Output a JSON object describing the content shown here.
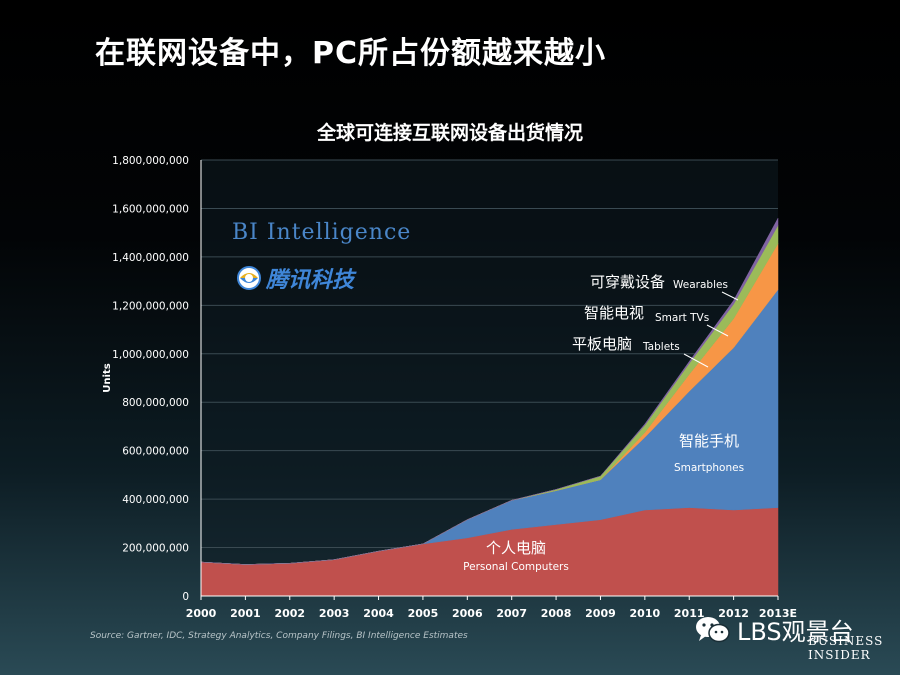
{
  "slide": {
    "title": "在联网设备中，PC所占份额越来越小",
    "source": "Source: Gartner, IDC, Strategy Analytics, Company Filings, BI Intelligence Estimates",
    "watermark_bi": "BI Intelligence",
    "watermark_tencent": "腾讯科技",
    "wechat_account": "LBS观景台",
    "corner_logo_line1": "BUSINESS",
    "corner_logo_line2": "INSIDER"
  },
  "chart_data": {
    "type": "area",
    "stacked": true,
    "title": "全球可连接互联网设备出货情况",
    "ylabel": "Units",
    "xlabel": "",
    "x": [
      "2000",
      "2001",
      "2002",
      "2003",
      "2004",
      "2005",
      "2006",
      "2007",
      "2008",
      "2009",
      "2010",
      "2011",
      "2012",
      "2013E"
    ],
    "ylim": [
      0,
      1800000000
    ],
    "yticks": [
      0,
      200000000,
      400000000,
      600000000,
      800000000,
      1000000000,
      1200000000,
      1400000000,
      1600000000,
      1800000000
    ],
    "ytick_labels": [
      "0",
      "200,000,000",
      "400,000,000",
      "600,000,000",
      "800,000,000",
      "1,000,000,000",
      "1,200,000,000",
      "1,400,000,000",
      "1,600,000,000",
      "1,800,000,000"
    ],
    "grid": true,
    "series": [
      {
        "name": "Personal Computers",
        "label_cn": "个人电脑",
        "color": "#c0504d",
        "values": [
          140000000,
          130000000,
          135000000,
          150000000,
          185000000,
          215000000,
          240000000,
          275000000,
          295000000,
          315000000,
          355000000,
          365000000,
          355000000,
          365000000
        ]
      },
      {
        "name": "Smartphones",
        "label_cn": "智能手机",
        "color": "#4f81bd",
        "values": [
          0,
          0,
          0,
          0,
          0,
          0,
          75000000,
          120000000,
          140000000,
          165000000,
          300000000,
          480000000,
          670000000,
          900000000
        ]
      },
      {
        "name": "Tablets",
        "label_cn": "平板电脑",
        "color": "#f79646",
        "values": [
          0,
          0,
          0,
          0,
          0,
          0,
          0,
          0,
          0,
          0,
          20000000,
          70000000,
          120000000,
          190000000
        ]
      },
      {
        "name": "Smart TVs",
        "label_cn": "智能电视",
        "color": "#9bbb59",
        "values": [
          0,
          0,
          0,
          0,
          0,
          0,
          0,
          0,
          5000000,
          15000000,
          30000000,
          45000000,
          60000000,
          75000000
        ]
      },
      {
        "name": "Wearables",
        "label_cn": "可穿戴设备",
        "color": "#8064a2",
        "values": [
          0,
          0,
          0,
          0,
          0,
          0,
          0,
          0,
          0,
          0,
          5000000,
          8000000,
          15000000,
          30000000
        ]
      }
    ]
  }
}
